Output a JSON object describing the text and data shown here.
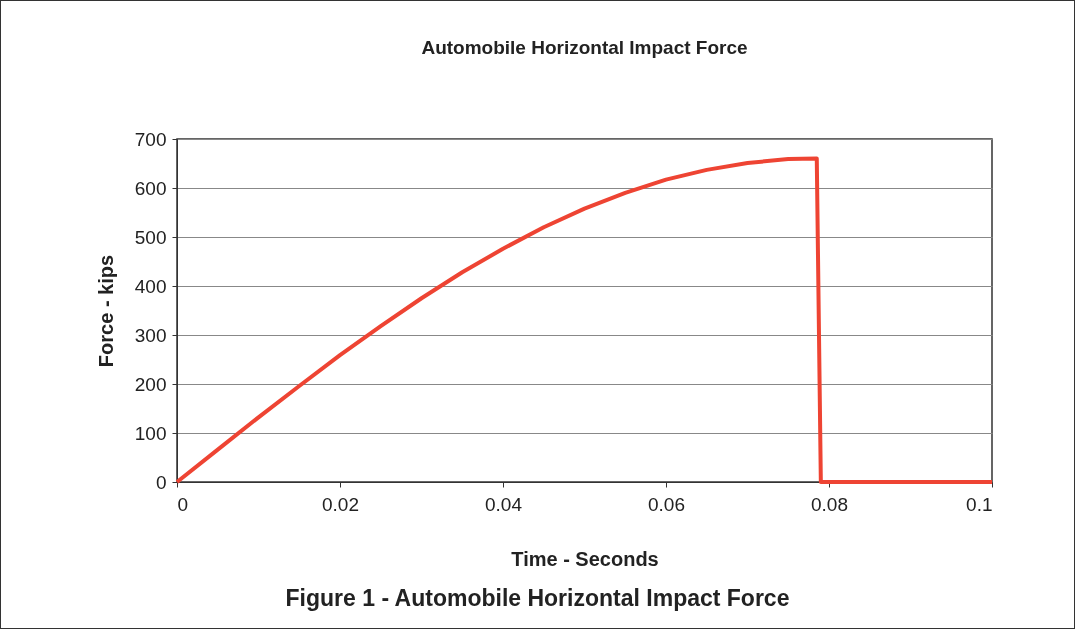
{
  "chart_data": {
    "type": "line",
    "title": "Automobile Horizontal Impact Force",
    "xlabel": "Time - Seconds",
    "ylabel": "Force - kips",
    "x": [
      0,
      0.005,
      0.01,
      0.015,
      0.02,
      0.025,
      0.03,
      0.035,
      0.04,
      0.045,
      0.05,
      0.055,
      0.06,
      0.065,
      0.07,
      0.075,
      0.0785,
      0.079,
      0.1
    ],
    "series": [
      {
        "color": "#ee4433",
        "values": [
          0,
          66,
          132,
          196,
          259,
          318,
          375,
          428,
          476,
          520,
          558,
          590,
          617,
          637,
          651,
          659,
          660,
          0,
          0
        ]
      }
    ],
    "xlim": [
      0,
      0.1
    ],
    "xticks": [
      0,
      0.02,
      0.04,
      0.06,
      0.08,
      0.1
    ],
    "ylim": [
      0,
      700
    ],
    "yticks": [
      0,
      100,
      200,
      300,
      400,
      500,
      600,
      700
    ],
    "grid": "y",
    "legend": false,
    "marker": "none",
    "line_style": "solid",
    "annotations": [
      "Figure 1 - Automobile Horizontal Impact Force"
    ]
  }
}
